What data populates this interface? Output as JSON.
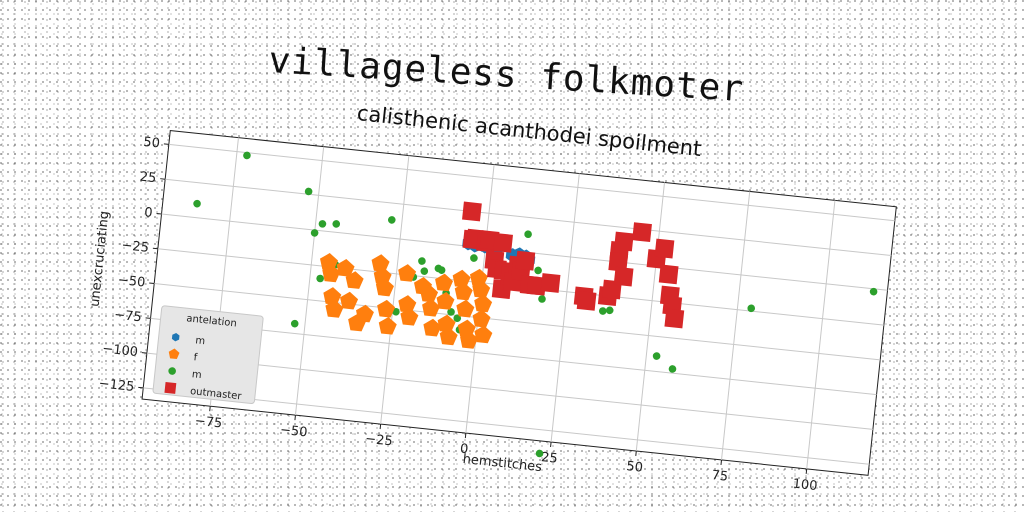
{
  "figure": {
    "suptitle": "villageless folkmoter"
  },
  "chart_data": {
    "type": "scatter",
    "title": "calisthenic acanthodei spoilment",
    "xlabel": "hemstitches",
    "ylabel": "unexcruciating",
    "xlim": [
      -95,
      118
    ],
    "ylim": [
      -133,
      60
    ],
    "xticks": [
      "−75",
      "−50",
      "−25",
      "0",
      "25",
      "50",
      "75",
      "100"
    ],
    "yticks": [
      "50",
      "25",
      "0",
      "−25",
      "−50",
      "−75",
      "−100",
      "−125"
    ],
    "grid": true,
    "legend": {
      "title": "antelation",
      "position": "lower left"
    },
    "series": [
      {
        "name": "m",
        "marker": "hexagon",
        "color": "#1f77b4",
        "points": [
          [
            -5,
            2
          ],
          [
            -4,
            3
          ],
          [
            -3,
            1
          ],
          [
            -2,
            4
          ],
          [
            -1,
            2
          ],
          [
            0,
            1
          ],
          [
            1,
            3
          ],
          [
            2,
            2
          ],
          [
            3,
            1
          ],
          [
            4,
            2
          ],
          [
            8,
            -3
          ],
          [
            10,
            -2
          ],
          [
            11,
            -4
          ],
          [
            12,
            -3
          ],
          [
            13,
            -5
          ]
        ]
      },
      {
        "name": "f",
        "marker": "pentagon",
        "color": "#ff7f0e",
        "points": [
          [
            -45,
            -22
          ],
          [
            -44,
            -30
          ],
          [
            -43,
            -46
          ],
          [
            -42,
            -55
          ],
          [
            -40,
            -25
          ],
          [
            -38,
            -48
          ],
          [
            -37,
            -33
          ],
          [
            -35,
            -63
          ],
          [
            -33,
            -56
          ],
          [
            -30,
            -19
          ],
          [
            -29,
            -28
          ],
          [
            -28,
            -36
          ],
          [
            -27,
            -51
          ],
          [
            -26,
            -63
          ],
          [
            -22,
            -24
          ],
          [
            -21,
            -46
          ],
          [
            -20,
            -55
          ],
          [
            -17,
            -32
          ],
          [
            -15,
            -37
          ],
          [
            -14,
            -47
          ],
          [
            -13,
            -61
          ],
          [
            -11,
            -28
          ],
          [
            -10,
            -41
          ],
          [
            -9,
            -57
          ],
          [
            -8,
            -66
          ],
          [
            -6,
            -24
          ],
          [
            -5,
            -33
          ],
          [
            -4,
            -45
          ],
          [
            -3,
            -59
          ],
          [
            -2,
            -67
          ],
          [
            -1,
            -22
          ],
          [
            0,
            -30
          ],
          [
            1,
            -40
          ],
          [
            1,
            -51
          ],
          [
            2,
            -62
          ]
        ]
      },
      {
        "name": "m",
        "marker": "circle",
        "color": "#2ca02c",
        "points": [
          [
            -85,
            10
          ],
          [
            -72,
            48
          ],
          [
            -53,
            27
          ],
          [
            -53,
            -68
          ],
          [
            -50,
            -2
          ],
          [
            -48,
            5
          ],
          [
            -47,
            -34
          ],
          [
            -45,
            -31
          ],
          [
            -44,
            6
          ],
          [
            -43,
            -23
          ],
          [
            -28,
            13
          ],
          [
            -24,
            -52
          ],
          [
            -20,
            -26
          ],
          [
            -18,
            -14
          ],
          [
            -17,
            -21
          ],
          [
            -13,
            -18
          ],
          [
            -12,
            -19
          ],
          [
            -10,
            -35
          ],
          [
            -9,
            -40
          ],
          [
            -8,
            -48
          ],
          [
            -6,
            -52
          ],
          [
            -5,
            -60
          ],
          [
            -3,
            -8
          ],
          [
            4,
            -4
          ],
          [
            8,
            -25
          ],
          [
            11,
            -3
          ],
          [
            12,
            13
          ],
          [
            16,
            -12
          ],
          [
            18,
            -32
          ],
          [
            22,
            -142
          ],
          [
            36,
            -36
          ],
          [
            38,
            -35
          ],
          [
            53,
            -64
          ],
          [
            58,
            -72
          ],
          [
            79,
            -23
          ],
          [
            114,
            -2
          ]
        ]
      },
      {
        "name": "outmaster",
        "marker": "square",
        "color": "#d62728",
        "points": [
          [
            -5,
            25
          ],
          [
            -4,
            5
          ],
          [
            -3,
            6
          ],
          [
            0,
            4
          ],
          [
            1,
            6
          ],
          [
            3,
            -8
          ],
          [
            4,
            -14
          ],
          [
            5,
            5
          ],
          [
            6,
            -28
          ],
          [
            6,
            -15
          ],
          [
            8,
            -18
          ],
          [
            9,
            -22
          ],
          [
            10,
            -10
          ],
          [
            11,
            -14
          ],
          [
            12,
            -6
          ],
          [
            14,
            -23
          ],
          [
            16,
            -23
          ],
          [
            20,
            -20
          ],
          [
            30,
            -27
          ],
          [
            31,
            -30
          ],
          [
            37,
            -25
          ],
          [
            38,
            -20
          ],
          [
            39,
            8
          ],
          [
            39,
            0
          ],
          [
            40,
            15
          ],
          [
            41,
            -10
          ],
          [
            45,
            23
          ],
          [
            50,
            5
          ],
          [
            52,
            13
          ],
          [
            54,
            -5
          ],
          [
            55,
            -20
          ],
          [
            56,
            -27
          ],
          [
            57,
            -36
          ]
        ]
      }
    ]
  }
}
